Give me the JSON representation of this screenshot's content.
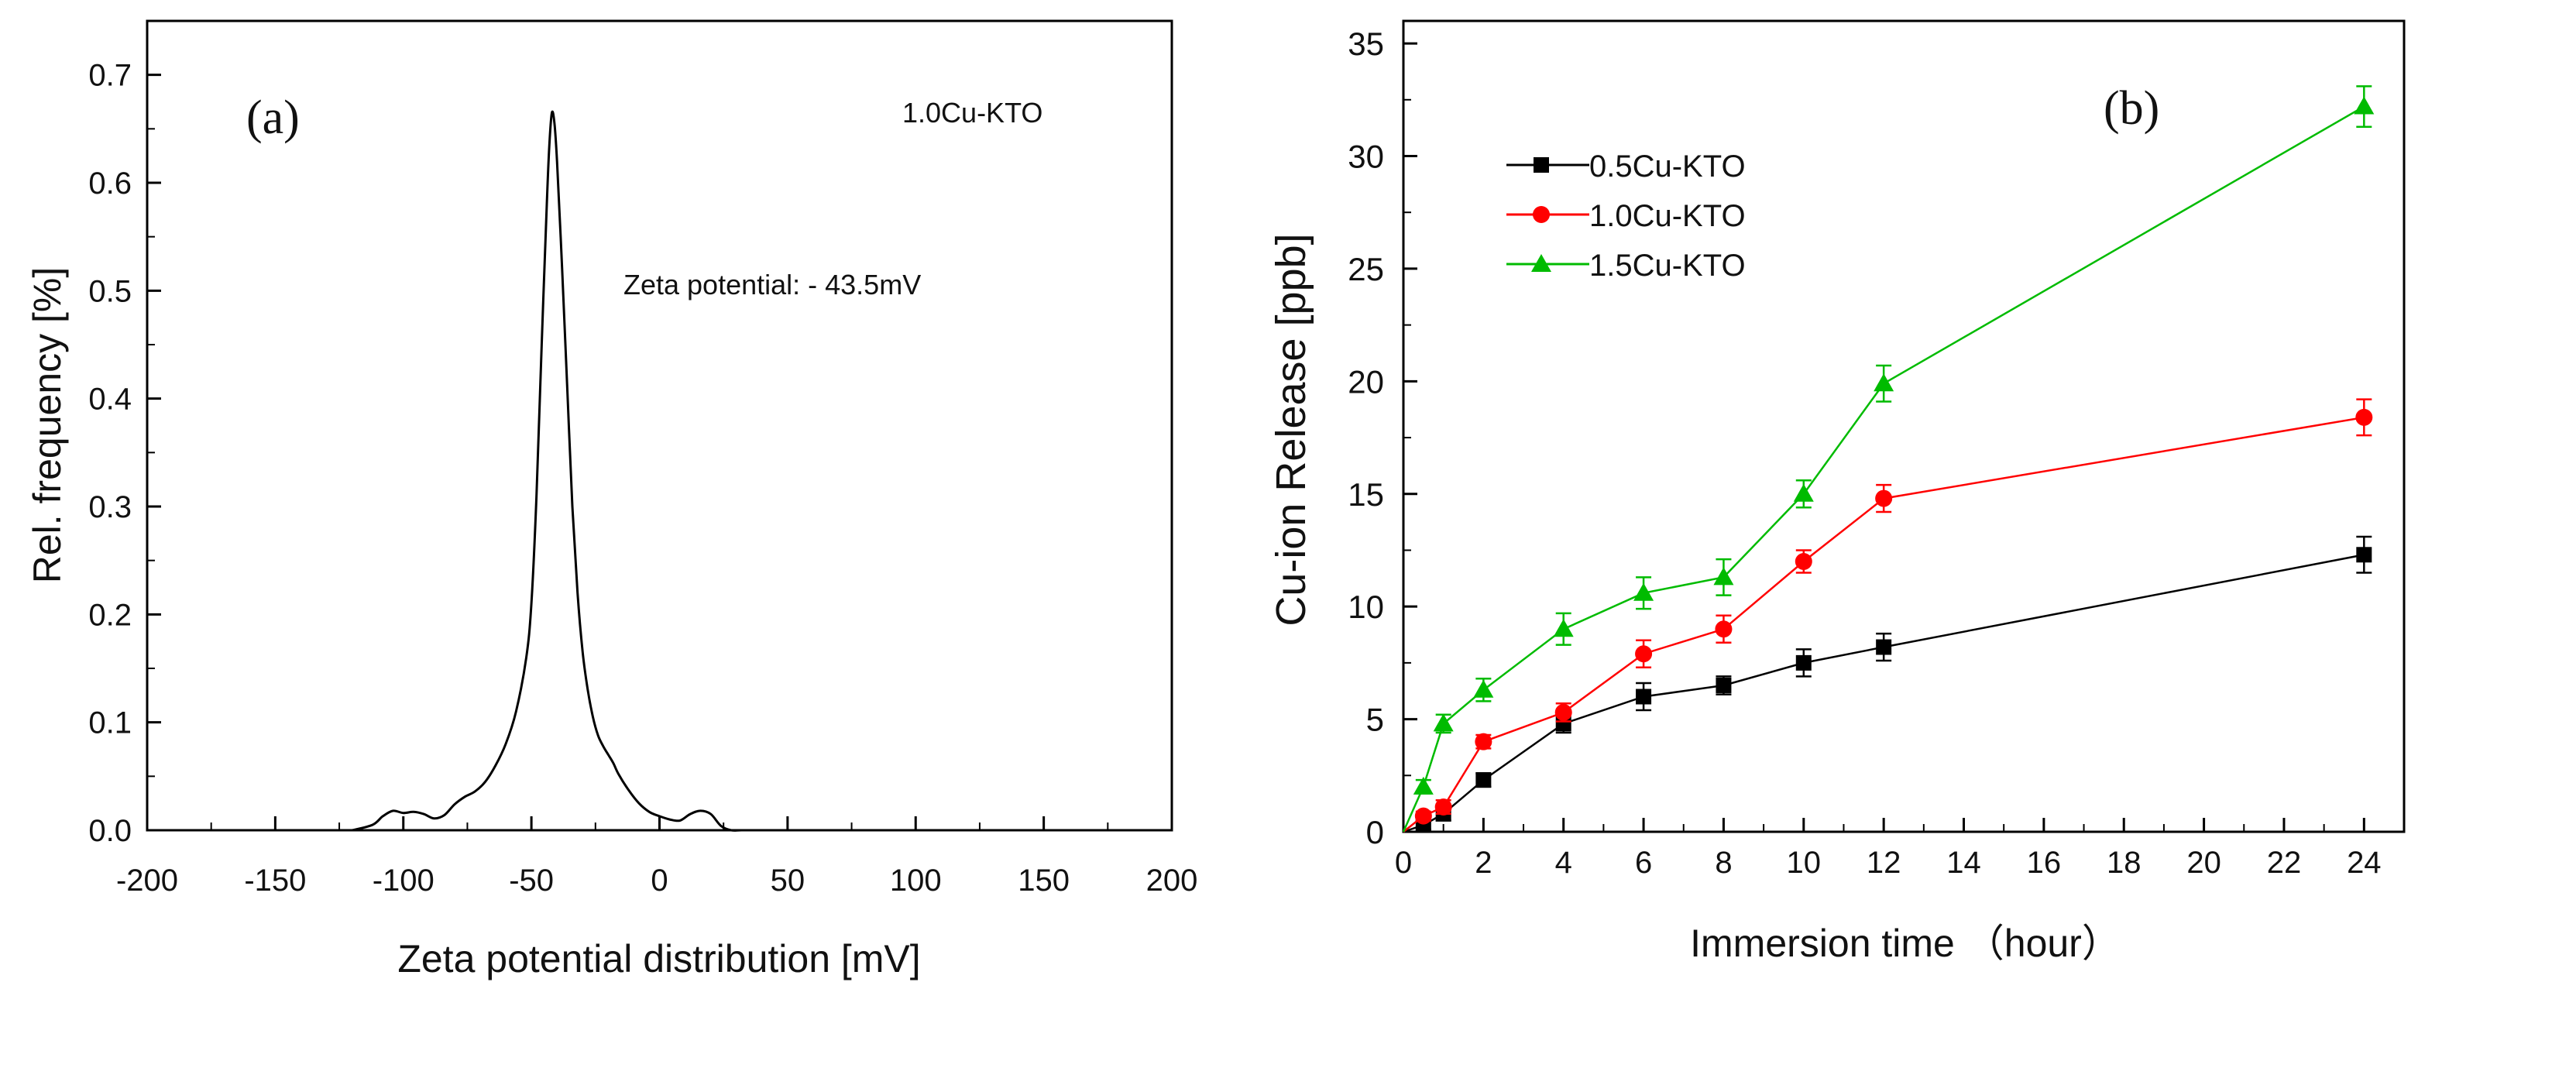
{
  "chart_data": [
    {
      "id": "a",
      "type": "line",
      "panel_label": "(a)",
      "title": "",
      "sample_label": "1.0Cu-KTO",
      "annotation": "Zeta potential: - 43.5mV",
      "xlabel": "Zeta potential distribution [mV]",
      "ylabel": "Rel. frequency [%]",
      "xlim": [
        -200,
        200
      ],
      "ylim": [
        0,
        0.75
      ],
      "xticks": [
        -200,
        -150,
        -100,
        -50,
        0,
        50,
        100,
        150,
        200
      ],
      "yticks": [
        0.0,
        0.1,
        0.2,
        0.3,
        0.4,
        0.5,
        0.6,
        0.7
      ],
      "ytick_labels": [
        "0.0",
        "0.1",
        "0.2",
        "0.3",
        "0.4",
        "0.5",
        "0.6",
        "0.7"
      ],
      "grid": false,
      "color": "#000000",
      "x": [
        -120,
        -112,
        -108,
        -104,
        -100,
        -96,
        -92,
        -88,
        -84,
        -80,
        -76,
        -72,
        -68,
        -64,
        -60,
        -56,
        -52,
        -50,
        -48,
        -46,
        -44,
        -43,
        -42,
        -41,
        -40,
        -38,
        -36,
        -34,
        -32,
        -30,
        -28,
        -26,
        -24,
        -22,
        -20,
        -18,
        -16,
        -12,
        -8,
        -4,
        0,
        4,
        8,
        12,
        16,
        20,
        24,
        28,
        32,
        40
      ],
      "y": [
        0.0,
        0.005,
        0.013,
        0.018,
        0.016,
        0.017,
        0.015,
        0.011,
        0.014,
        0.024,
        0.031,
        0.036,
        0.045,
        0.06,
        0.08,
        0.11,
        0.16,
        0.21,
        0.31,
        0.45,
        0.58,
        0.635,
        0.665,
        0.655,
        0.62,
        0.52,
        0.41,
        0.3,
        0.22,
        0.165,
        0.13,
        0.105,
        0.088,
        0.078,
        0.07,
        0.062,
        0.052,
        0.037,
        0.025,
        0.017,
        0.013,
        0.01,
        0.009,
        0.015,
        0.018,
        0.015,
        0.004,
        0.0,
        0.0,
        0.0
      ]
    },
    {
      "id": "b",
      "type": "line",
      "panel_label": "(b)",
      "title": "",
      "xlabel": "Immersion time （hour）",
      "ylabel": "Cu-ion Release [ppb]",
      "xlim": [
        0,
        25
      ],
      "ylim": [
        0,
        36
      ],
      "xticks": [
        0,
        2,
        4,
        6,
        8,
        10,
        12,
        14,
        16,
        18,
        20,
        22,
        24
      ],
      "yticks": [
        0,
        5,
        10,
        15,
        20,
        25,
        30,
        35
      ],
      "grid": false,
      "legend_position": "top-left",
      "x": [
        0,
        0.5,
        1,
        2,
        4,
        6,
        8,
        10,
        12,
        24
      ],
      "series": [
        {
          "name": "0.5Cu-KTO",
          "color": "#000000",
          "marker": "square",
          "values": [
            0,
            0.3,
            0.8,
            2.3,
            4.8,
            6.0,
            6.5,
            7.5,
            8.2,
            12.3
          ],
          "errors": [
            0,
            0.2,
            0.3,
            0.3,
            0.4,
            0.6,
            0.4,
            0.6,
            0.6,
            0.8
          ]
        },
        {
          "name": "1.0Cu-KTO",
          "color": "#ff0000",
          "marker": "circle",
          "values": [
            0,
            0.7,
            1.1,
            4.0,
            5.3,
            7.9,
            9.0,
            12.0,
            14.8,
            18.4
          ],
          "errors": [
            0,
            0.2,
            0.3,
            0.3,
            0.4,
            0.6,
            0.6,
            0.5,
            0.6,
            0.8
          ]
        },
        {
          "name": "1.5Cu-KTO",
          "color": "#00bb00",
          "marker": "triangle",
          "values": [
            0,
            2.0,
            4.8,
            6.3,
            9.0,
            10.6,
            11.3,
            15.0,
            19.9,
            32.2
          ],
          "errors": [
            0,
            0.3,
            0.4,
            0.5,
            0.7,
            0.7,
            0.8,
            0.6,
            0.8,
            0.9
          ]
        }
      ]
    }
  ]
}
